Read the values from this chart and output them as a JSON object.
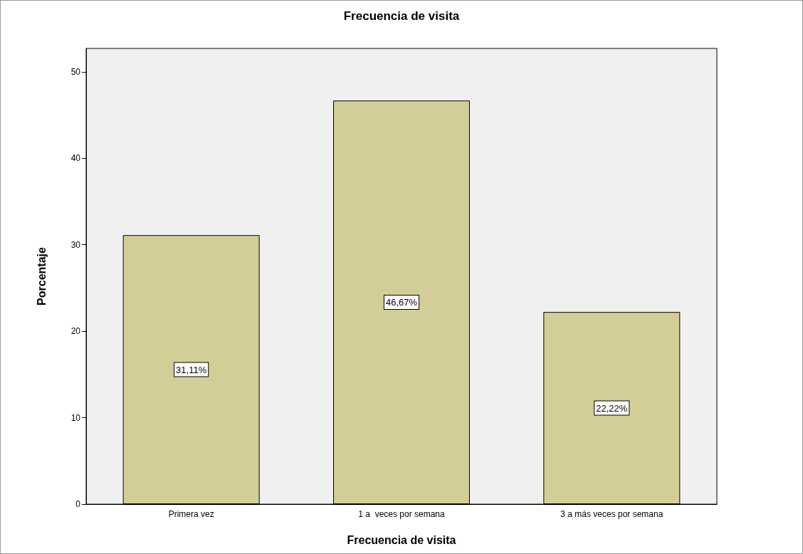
{
  "chart_data": {
    "type": "bar",
    "title": "Frecuencia de visita",
    "xlabel": "Frecuencia de visita",
    "ylabel": "Porcentaje",
    "categories": [
      "Primera vez",
      "1 a  veces por semana",
      "3 a más veces por semana"
    ],
    "values": [
      31.11,
      46.67,
      22.22
    ],
    "value_labels": [
      "31,11%",
      "46,67%",
      "22,22%"
    ],
    "color": "#d3ce97",
    "ylim": [
      0,
      52.7
    ],
    "yticks": [
      0,
      10,
      20,
      30,
      40,
      50
    ],
    "grid": false
  }
}
